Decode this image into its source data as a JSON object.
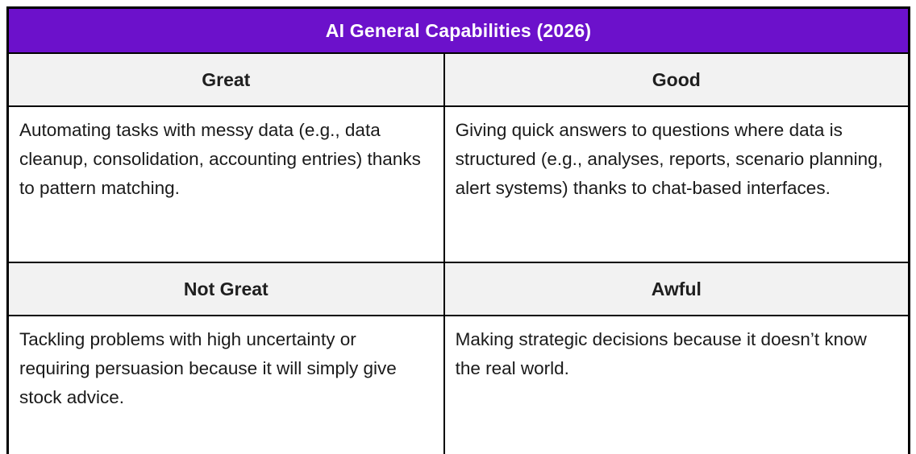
{
  "table": {
    "title": "AI General Capabilities (2026)",
    "quadrants": [
      {
        "label": "Great",
        "text": "Automating tasks with messy data (e.g., data cleanup, consolidation, accounting entries) thanks to pattern matching."
      },
      {
        "label": "Good",
        "text": "Giving quick answers to questions where data is structured (e.g., analyses, reports, scenario planning, alert systems) thanks to chat-based interfaces."
      },
      {
        "label": "Not Great",
        "text": "Tackling problems with high uncertainty or requiring persuasion because it will simply give stock advice."
      },
      {
        "label": "Awful",
        "text": "Making strategic decisions because it doesn’t know the real world."
      }
    ],
    "colors": {
      "title_bg": "#6c11cb",
      "title_text": "#ffffff",
      "category_bg": "#f2f2f2",
      "border": "#000000",
      "body_text": "#1a1a1a",
      "page_bg": "#ffffff"
    }
  },
  "chart_data": {
    "type": "table",
    "title": "AI General Capabilities (2026)",
    "layout": "2x2 matrix with full-width title band; black grid borders; gray category header rows",
    "cells": [
      {
        "category": "Great",
        "description": "Automating tasks with messy data (e.g., data cleanup, consolidation, accounting entries) thanks to pattern matching."
      },
      {
        "category": "Good",
        "description": "Giving quick answers to questions where data is structured (e.g., analyses, reports, scenario planning, alert systems) thanks to chat-based interfaces."
      },
      {
        "category": "Not Great",
        "description": "Tackling problems with high uncertainty or requiring persuasion because it will simply give stock advice."
      },
      {
        "category": "Awful",
        "description": "Making strategic decisions because it doesn’t know the real world."
      }
    ]
  }
}
